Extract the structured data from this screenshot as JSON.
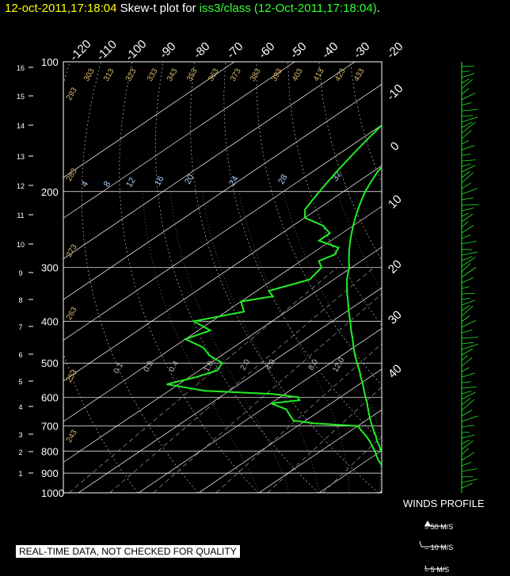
{
  "header": {
    "time": "12-oct-2011,17:18:04",
    "middle": "Skew-t plot for",
    "source": "iss3/class (12-Oct-2011,17:18:04)",
    "end": "."
  },
  "footer": {
    "quality": "REAL-TIME DATA, NOT CHECKED FOR QUALITY",
    "winds_title": "WINDS PROFILE",
    "legend": [
      "= 50 M/S",
      "= 10 M/S",
      "= 5 M/S"
    ]
  },
  "colors": {
    "sounding": "#22ee22",
    "title_time": "#ffff00",
    "title_source": "#33ff33",
    "grid": "#ffffff"
  },
  "chart_data": {
    "type": "line",
    "pressure_ticks": [
      "100",
      "200",
      "300",
      "400",
      "500",
      "600",
      "700",
      "800",
      "900",
      "1000"
    ],
    "height_ticks": [
      "1",
      "2",
      "3",
      "4",
      "5",
      "6",
      "7",
      "8",
      "9",
      "10",
      "11",
      "12",
      "13",
      "14",
      "15",
      "16"
    ],
    "temp_ticks": [
      "-120",
      "-110",
      "-100",
      "-90",
      "-80",
      "-70",
      "-60",
      "-50",
      "-40",
      "-30",
      "-20",
      "-10",
      "0",
      "10",
      "20",
      "30",
      "40"
    ],
    "theta_labels": [
      "243",
      "253",
      "263",
      "273",
      "283",
      "293",
      "303",
      "313",
      "323",
      "333",
      "343",
      "353",
      "363",
      "373",
      "383",
      "393",
      "403",
      "413",
      "423",
      "433"
    ],
    "mixing_labels": [
      "4",
      "8",
      "12",
      "16",
      "20",
      "24",
      "28",
      "32"
    ],
    "mixing_low_labels": [
      "0.1",
      "0.2",
      "0.4",
      "1.0",
      "2.0",
      "4.0",
      "8.0",
      "12.0"
    ],
    "series": [
      {
        "pressure": [
          1000,
          980,
          960,
          940,
          920,
          900,
          880,
          860,
          840,
          820,
          800,
          780,
          760,
          740,
          720,
          700,
          690,
          680,
          670,
          660,
          640,
          630,
          620,
          610,
          600,
          590,
          580,
          560,
          540,
          520,
          500,
          480,
          460,
          440,
          420,
          400,
          380,
          360,
          350,
          340,
          320,
          300,
          290,
          280,
          270,
          260,
          250,
          240,
          230,
          220,
          210,
          200,
          190,
          180,
          170,
          160,
          150,
          140,
          130,
          120,
          110,
          100
        ],
        "temperature": [
          15.2,
          13.8,
          12.2,
          10.6,
          9.0,
          7.4,
          6.0,
          4.6,
          3.0,
          1.6,
          0.0,
          -1.4,
          -3.0,
          -4.4,
          -6.0,
          -7.6,
          -8.4,
          -9.2,
          -10.0,
          -10.8,
          -12.4,
          -13.2,
          -14.0,
          -14.9,
          -15.8,
          -16.7,
          -17.6,
          -19.4,
          -21.4,
          -23.4,
          -25.6,
          -27.8,
          -30.0,
          -32.2,
          -34.6,
          -37.0,
          -39.6,
          -42.2,
          -43.6,
          -45.0,
          -47.8,
          -50.4,
          -52.0,
          -53.6,
          -55.2,
          -56.8,
          -58.4,
          -60.0,
          -61.6,
          -63.2,
          -64.8,
          -66.4,
          -67.8,
          -69.2,
          -70.2,
          -70.8,
          -71.2,
          -71.4,
          -71.8,
          -72.2,
          -72.4,
          -72.8
        ]
      },
      {
        "pressure": [
          1000,
          980,
          960,
          940,
          920,
          900,
          880,
          860,
          840,
          820,
          800,
          780,
          760,
          740,
          720,
          700,
          690,
          680,
          670,
          660,
          640,
          630,
          620,
          610,
          600,
          590,
          580,
          560,
          540,
          520,
          500,
          480,
          460,
          440,
          420,
          400,
          380,
          360,
          350,
          340,
          320,
          300,
          290,
          280,
          270,
          260,
          250,
          240,
          230,
          220,
          210,
          200,
          190,
          180,
          170,
          160,
          150,
          140,
          130,
          120,
          110,
          100
        ],
        "dewpoint": [
          12.6,
          11.4,
          10.2,
          8.8,
          7.4,
          6.0,
          4.6,
          3.4,
          1.8,
          0.4,
          -1.0,
          -2.6,
          -4.2,
          -6.0,
          -8.0,
          -10.0,
          -18.0,
          -22.0,
          -23.0,
          -24.0,
          -26.0,
          -28.0,
          -30.0,
          -26.0,
          -27.0,
          -32.0,
          -44.0,
          -52.0,
          -49.0,
          -47.0,
          -48.0,
          -52.0,
          -55.0,
          -60.0,
          -58.0,
          -63.0,
          -57.0,
          -60.0,
          -56.0,
          -58.0,
          -54.0,
          -55.0,
          -57.0,
          -56.0,
          -57.0,
          -62.0,
          -62.0,
          -65.0,
          -70.0,
          -72.0,
          -73.0,
          -74.0,
          -75.0,
          -76.0,
          -77.0,
          -78.0,
          -79.0,
          -80.0,
          -81.0,
          -82.0,
          -83.0,
          -84.0
        ]
      }
    ]
  }
}
